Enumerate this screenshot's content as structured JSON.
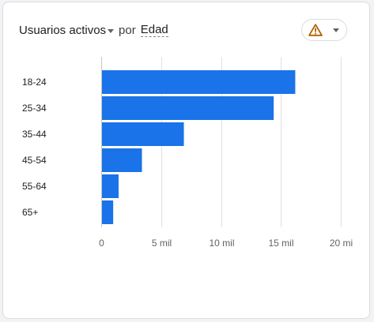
{
  "header": {
    "metric": "Usuarios activos",
    "connector": "por",
    "dimension": "Edad"
  },
  "icons": {
    "warning": "warning-triangle-icon",
    "dropdown": "chevron-down-icon"
  },
  "colors": {
    "bar": "#1a73e8",
    "warning": "#b06000",
    "grid": "#e0e0e0"
  },
  "chart_data": {
    "type": "bar",
    "orientation": "horizontal",
    "categories": [
      "18-24",
      "25-34",
      "35-44",
      "45-54",
      "55-64",
      "65+"
    ],
    "values": [
      16200,
      14400,
      6900,
      3400,
      1450,
      1000
    ],
    "xlim": [
      0,
      20000
    ],
    "xticks": [
      0,
      5000,
      10000,
      15000,
      20000
    ],
    "xtick_labels": [
      "0",
      "5 mil",
      "10 mil",
      "15 mil",
      "20 mi"
    ],
    "grid": true,
    "title": "",
    "xlabel": "",
    "ylabel": ""
  }
}
